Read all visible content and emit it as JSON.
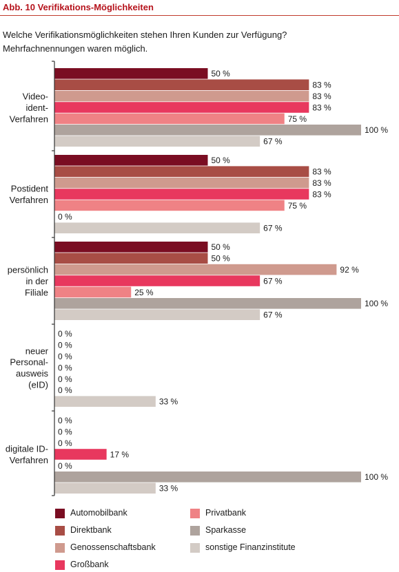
{
  "header": {
    "title": "Abb. 10  Verifikations-Möglichkeiten"
  },
  "question": {
    "line1": "Welche Verifikationsmöglichkeiten stehen Ihren Kunden zur Verfügung?",
    "line2": "Mehrfachnennungen waren möglich."
  },
  "chart_data": {
    "type": "bar",
    "orientation": "horizontal",
    "value_suffix": " %",
    "xlim": [
      0,
      100
    ],
    "categories": [
      [
        "Video-",
        "ident-",
        "Verfahren"
      ],
      [
        "Postident",
        "Verfahren"
      ],
      [
        "persönlich",
        "in der",
        "Filiale"
      ],
      [
        "neuer",
        "Personal-",
        "ausweis",
        "(eID)"
      ],
      [
        "digitale ID-",
        "Verfahren"
      ]
    ],
    "series": [
      {
        "name": "Automobilbank",
        "color": "#7a0d22",
        "values": [
          50,
          50,
          50,
          0,
          0
        ]
      },
      {
        "name": "Direktbank",
        "color": "#a84d45",
        "values": [
          83,
          83,
          50,
          0,
          0
        ]
      },
      {
        "name": "Genossenschaftsbank",
        "color": "#cf9a8e",
        "values": [
          83,
          83,
          92,
          0,
          0
        ]
      },
      {
        "name": "Großbank",
        "color": "#e8385e",
        "values": [
          83,
          83,
          67,
          0,
          17
        ]
      },
      {
        "name": "Privatbank",
        "color": "#ef8285",
        "values": [
          75,
          75,
          25,
          0,
          0
        ]
      },
      {
        "name": "Sparkasse",
        "color": "#aea39d",
        "values": [
          100,
          0,
          100,
          0,
          100
        ]
      },
      {
        "name": "sonstige Finanzinstitute",
        "color": "#d3cbc5",
        "values": [
          67,
          67,
          67,
          33,
          33
        ]
      }
    ]
  },
  "legend": {
    "items": [
      {
        "label": "Automobilbank",
        "color": "#7a0d22"
      },
      {
        "label": "Direktbank",
        "color": "#a84d45"
      },
      {
        "label": "Genossenschaftsbank",
        "color": "#cf9a8e"
      },
      {
        "label": "Großbank",
        "color": "#e8385e"
      },
      {
        "label": "Privatbank",
        "color": "#ef8285"
      },
      {
        "label": "Sparkasse",
        "color": "#aea39d"
      },
      {
        "label": "sonstige Finanzinstitute",
        "color": "#d3cbc5"
      }
    ]
  }
}
